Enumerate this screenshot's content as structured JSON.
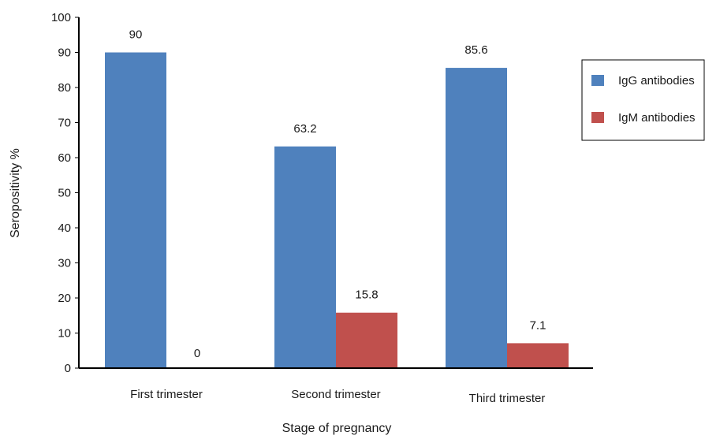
{
  "chart_data": {
    "type": "bar",
    "title": "",
    "xlabel": "Stage of pregnancy",
    "ylabel": "Seropositivity %",
    "ylim": [
      0,
      100
    ],
    "yticks": [
      0,
      10,
      20,
      30,
      40,
      50,
      60,
      70,
      80,
      90,
      100
    ],
    "grid": false,
    "legend_position": "right",
    "categories": [
      "First trimester",
      "Second trimester",
      "Third trimester"
    ],
    "series": [
      {
        "name": "IgG antibodies",
        "color": "#4f81bd",
        "values": [
          90,
          63.2,
          85.6
        ],
        "labels": [
          "90",
          "63.2",
          "85.6"
        ]
      },
      {
        "name": "IgM antibodies",
        "color": "#c0504d",
        "values": [
          0,
          15.8,
          7.1
        ],
        "labels": [
          "0",
          "15.8",
          "7.1"
        ]
      }
    ]
  }
}
